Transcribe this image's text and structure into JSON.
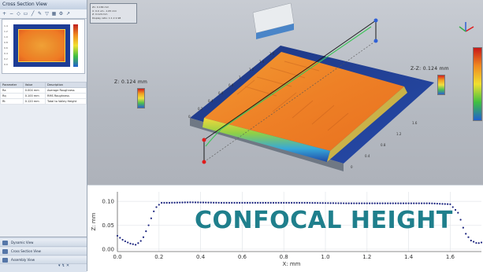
{
  "left_panel": {
    "title": "Cross Section View",
    "thumb_ticks": [
      "1.4",
      "1.2",
      "1.0",
      "0.8",
      "0.6",
      "0.4",
      "0.2",
      "0.0"
    ],
    "table": {
      "headers": [
        "Parameter",
        "Value",
        "Description"
      ],
      "rows": [
        [
          "Ra",
          "0.004 mm",
          "Average Roughness"
        ],
        [
          "Rq",
          "0.100 mm",
          "RMS Roughness"
        ],
        [
          "Rt",
          "0.120 mm",
          "Total to Valley Height"
        ]
      ]
    },
    "views": [
      "Dynamic View",
      "Cross Section View",
      "Assembly View"
    ]
  },
  "view3d": {
    "info_lines": [
      "Z1: 0.184 mm",
      "X: 0.0 um - 1.65 mm",
      "Z: 0.124 mm",
      "Display ratio: 1:1 2:1:98"
    ],
    "z_left": "Z: 0.124 mm",
    "z_right": "Z-Z: 0.124 mm",
    "axis_ticks": [
      "0",
      "0.2",
      "0.4",
      "0.6",
      "0.8",
      "1",
      "1.2",
      "1.4",
      "1.6"
    ],
    "colors": {
      "orange": "#ee7f27",
      "yellow": "#f3e23a",
      "blue": "#1d3b9a",
      "green": "#45b54a"
    }
  },
  "banner": "CONFOCAL HEIGHT",
  "chart_data": {
    "type": "line",
    "title": "",
    "xlabel": "X: mm",
    "ylabel": "Z: mm",
    "xlim": [
      0.0,
      1.75
    ],
    "ylim": [
      -0.005,
      0.12
    ],
    "x_ticks": [
      0.0,
      0.2,
      0.4,
      0.6,
      0.8,
      1.0,
      1.2,
      1.4,
      1.6
    ],
    "x_tick_labels": [
      "0.0",
      "0.2",
      "0.4",
      "0.6",
      "0.8",
      "1.0",
      "1.2",
      "1.4",
      "1.6"
    ],
    "y_ticks": [
      0.0,
      0.05,
      0.1
    ],
    "y_tick_labels": [
      "0.00",
      "0.05",
      "0.10"
    ],
    "grid": true,
    "series": [
      {
        "color": "#1a237e",
        "x": [
          0.0,
          0.03,
          0.06,
          0.09,
          0.12,
          0.15,
          0.18,
          0.21,
          0.25,
          0.35,
          0.5,
          0.7,
          0.9,
          1.1,
          1.3,
          1.5,
          1.6,
          1.64,
          1.67,
          1.7,
          1.73,
          1.75
        ],
        "y": [
          0.028,
          0.018,
          0.012,
          0.009,
          0.02,
          0.05,
          0.085,
          0.097,
          0.097,
          0.098,
          0.097,
          0.097,
          0.097,
          0.096,
          0.096,
          0.096,
          0.094,
          0.075,
          0.035,
          0.018,
          0.012,
          0.014
        ]
      }
    ]
  }
}
